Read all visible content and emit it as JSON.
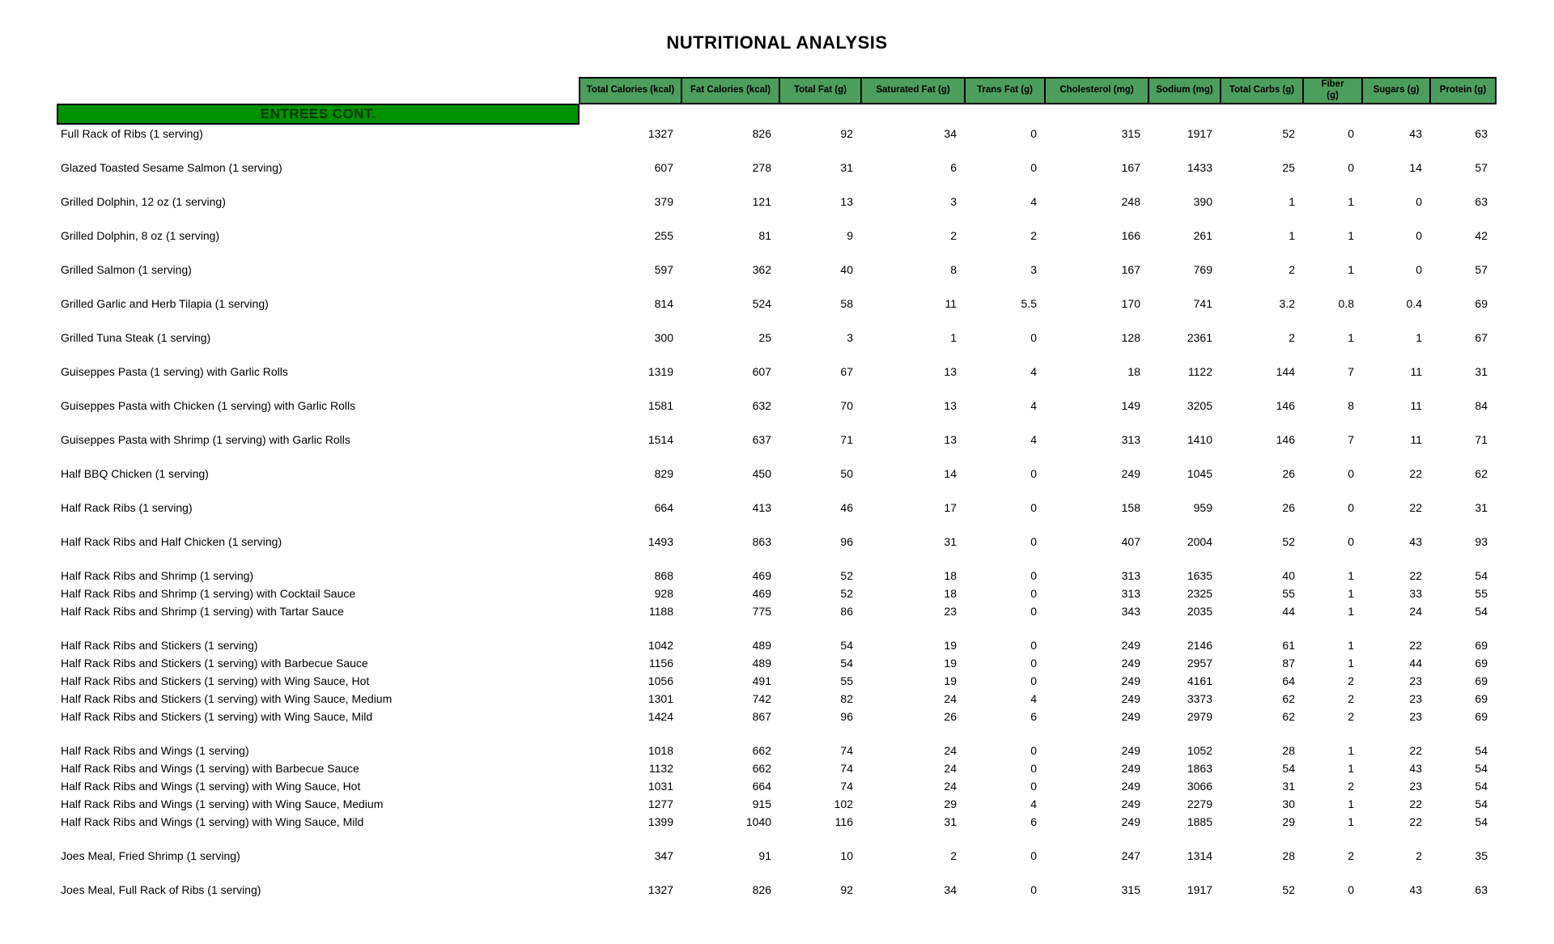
{
  "page": {
    "title": "NUTRITIONAL ANALYSIS"
  },
  "section": {
    "banner": "ENTREES CONT."
  },
  "colors": {
    "header_bg": "#4c9e5c",
    "banner_bg": "#009100",
    "border": "#000000",
    "page_bg": "#ffffff"
  },
  "table": {
    "columns": [
      "Total Calories (kcal)",
      "Fat Calories (kcal)",
      "Total Fat (g)",
      "Saturated Fat (g)",
      "Trans Fat (g)",
      "Cholesterol (mg)",
      "Sodium (mg)",
      "Total Carbs (g)",
      "Fiber (g)",
      "Sugars (g)",
      "Protein (g)"
    ],
    "rows": [
      {
        "label": "Full Rack of Ribs (1 serving)",
        "gap_before": false,
        "values": [
          "1327",
          "826",
          "92",
          "34",
          "0",
          "315",
          "1917",
          "52",
          "0",
          "43",
          "63"
        ]
      },
      {
        "label": "Glazed Toasted Sesame Salmon (1 serving)",
        "gap_before": true,
        "values": [
          "607",
          "278",
          "31",
          "6",
          "0",
          "167",
          "1433",
          "25",
          "0",
          "14",
          "57"
        ]
      },
      {
        "label": "Grilled Dolphin, 12 oz (1 serving)",
        "gap_before": true,
        "values": [
          "379",
          "121",
          "13",
          "3",
          "4",
          "248",
          "390",
          "1",
          "1",
          "0",
          "63"
        ]
      },
      {
        "label": "Grilled Dolphin, 8 oz (1 serving)",
        "gap_before": true,
        "values": [
          "255",
          "81",
          "9",
          "2",
          "2",
          "166",
          "261",
          "1",
          "1",
          "0",
          "42"
        ]
      },
      {
        "label": "Grilled Salmon (1 serving)",
        "gap_before": true,
        "values": [
          "597",
          "362",
          "40",
          "8",
          "3",
          "167",
          "769",
          "2",
          "1",
          "0",
          "57"
        ]
      },
      {
        "label": "Grilled Garlic and Herb Tilapia (1 serving)",
        "gap_before": true,
        "values": [
          "814",
          "524",
          "58",
          "11",
          "5.5",
          "170",
          "741",
          "3.2",
          "0.8",
          "0.4",
          "69"
        ]
      },
      {
        "label": "Grilled Tuna Steak (1 serving)",
        "gap_before": true,
        "values": [
          "300",
          "25",
          "3",
          "1",
          "0",
          "128",
          "2361",
          "2",
          "1",
          "1",
          "67"
        ]
      },
      {
        "label": "Guiseppes Pasta (1 serving) with Garlic Rolls",
        "gap_before": true,
        "values": [
          "1319",
          "607",
          "67",
          "13",
          "4",
          "18",
          "1122",
          "144",
          "7",
          "11",
          "31"
        ]
      },
      {
        "label": "Guiseppes Pasta with Chicken (1 serving) with Garlic Rolls",
        "gap_before": true,
        "values": [
          "1581",
          "632",
          "70",
          "13",
          "4",
          "149",
          "3205",
          "146",
          "8",
          "11",
          "84"
        ]
      },
      {
        "label": "Guiseppes Pasta with Shrimp (1 serving) with Garlic Rolls",
        "gap_before": true,
        "values": [
          "1514",
          "637",
          "71",
          "13",
          "4",
          "313",
          "1410",
          "146",
          "7",
          "11",
          "71"
        ]
      },
      {
        "label": "Half BBQ Chicken (1 serving)",
        "gap_before": true,
        "values": [
          "829",
          "450",
          "50",
          "14",
          "0",
          "249",
          "1045",
          "26",
          "0",
          "22",
          "62"
        ]
      },
      {
        "label": "Half Rack Ribs (1 serving)",
        "gap_before": true,
        "values": [
          "664",
          "413",
          "46",
          "17",
          "0",
          "158",
          "959",
          "26",
          "0",
          "22",
          "31"
        ]
      },
      {
        "label": "Half Rack Ribs and Half Chicken (1 serving)",
        "gap_before": true,
        "values": [
          "1493",
          "863",
          "96",
          "31",
          "0",
          "407",
          "2004",
          "52",
          "0",
          "43",
          "93"
        ]
      },
      {
        "label": "Half Rack Ribs and Shrimp (1 serving)",
        "gap_before": true,
        "values": [
          "868",
          "469",
          "52",
          "18",
          "0",
          "313",
          "1635",
          "40",
          "1",
          "22",
          "54"
        ]
      },
      {
        "label": "Half Rack Ribs and Shrimp (1 serving) with Cocktail Sauce",
        "gap_before": false,
        "values": [
          "928",
          "469",
          "52",
          "18",
          "0",
          "313",
          "2325",
          "55",
          "1",
          "33",
          "55"
        ]
      },
      {
        "label": "Half Rack Ribs and Shrimp (1 serving) with Tartar Sauce",
        "gap_before": false,
        "values": [
          "1188",
          "775",
          "86",
          "23",
          "0",
          "343",
          "2035",
          "44",
          "1",
          "24",
          "54"
        ]
      },
      {
        "label": "Half Rack Ribs and Stickers (1 serving)",
        "gap_before": true,
        "values": [
          "1042",
          "489",
          "54",
          "19",
          "0",
          "249",
          "2146",
          "61",
          "1",
          "22",
          "69"
        ]
      },
      {
        "label": "Half Rack Ribs and Stickers (1 serving) with Barbecue Sauce",
        "gap_before": false,
        "values": [
          "1156",
          "489",
          "54",
          "19",
          "0",
          "249",
          "2957",
          "87",
          "1",
          "44",
          "69"
        ]
      },
      {
        "label": "Half Rack Ribs and Stickers (1 serving) with Wing Sauce, Hot",
        "gap_before": false,
        "values": [
          "1056",
          "491",
          "55",
          "19",
          "0",
          "249",
          "4161",
          "64",
          "2",
          "23",
          "69"
        ]
      },
      {
        "label": "Half Rack Ribs and Stickers (1 serving) with Wing Sauce, Medium",
        "gap_before": false,
        "values": [
          "1301",
          "742",
          "82",
          "24",
          "4",
          "249",
          "3373",
          "62",
          "2",
          "23",
          "69"
        ]
      },
      {
        "label": "Half Rack Ribs and Stickers (1 serving) with Wing Sauce, Mild",
        "gap_before": false,
        "values": [
          "1424",
          "867",
          "96",
          "26",
          "6",
          "249",
          "2979",
          "62",
          "2",
          "23",
          "69"
        ]
      },
      {
        "label": "Half Rack Ribs and Wings (1 serving)",
        "gap_before": true,
        "values": [
          "1018",
          "662",
          "74",
          "24",
          "0",
          "249",
          "1052",
          "28",
          "1",
          "22",
          "54"
        ]
      },
      {
        "label": "Half Rack Ribs and Wings (1 serving) with Barbecue Sauce",
        "gap_before": false,
        "values": [
          "1132",
          "662",
          "74",
          "24",
          "0",
          "249",
          "1863",
          "54",
          "1",
          "43",
          "54"
        ]
      },
      {
        "label": "Half Rack Ribs and Wings (1 serving) with Wing Sauce, Hot",
        "gap_before": false,
        "values": [
          "1031",
          "664",
          "74",
          "24",
          "0",
          "249",
          "3066",
          "31",
          "2",
          "23",
          "54"
        ]
      },
      {
        "label": "Half Rack Ribs and Wings (1 serving) with Wing Sauce, Medium",
        "gap_before": false,
        "values": [
          "1277",
          "915",
          "102",
          "29",
          "4",
          "249",
          "2279",
          "30",
          "1",
          "22",
          "54"
        ]
      },
      {
        "label": "Half Rack Ribs and Wings (1 serving) with Wing Sauce, Mild",
        "gap_before": false,
        "values": [
          "1399",
          "1040",
          "116",
          "31",
          "6",
          "249",
          "1885",
          "29",
          "1",
          "22",
          "54"
        ]
      },
      {
        "label": "Joes Meal, Fried Shrimp (1 serving)",
        "gap_before": true,
        "values": [
          "347",
          "91",
          "10",
          "2",
          "0",
          "247",
          "1314",
          "28",
          "2",
          "2",
          "35"
        ]
      },
      {
        "label": "Joes Meal, Full Rack of Ribs (1 serving)",
        "gap_before": true,
        "values": [
          "1327",
          "826",
          "92",
          "34",
          "0",
          "315",
          "1917",
          "52",
          "0",
          "43",
          "63"
        ]
      }
    ]
  }
}
